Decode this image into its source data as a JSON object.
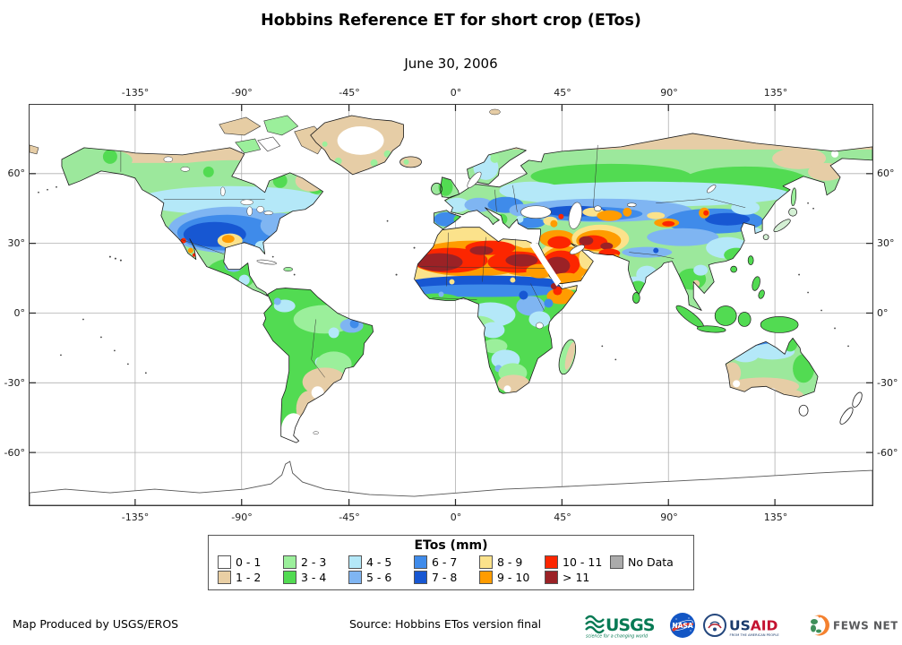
{
  "title": "Hobbins Reference ET for short crop (ETos)",
  "subtitle": "June 30, 2006",
  "axes": {
    "lon_ticks": [
      "-135°",
      "-90°",
      "-45°",
      "0°",
      "45°",
      "90°",
      "135°"
    ],
    "lat_ticks": [
      "60°",
      "30°",
      "0°",
      "-30°",
      "-60°"
    ]
  },
  "legend": {
    "title": "ETos (mm)",
    "items": [
      {
        "label": "0 - 1",
        "color": "#ffffff"
      },
      {
        "label": "1 - 2",
        "color": "#e9cfa4"
      },
      {
        "label": "2 - 3",
        "color": "#9bef9b"
      },
      {
        "label": "3 - 4",
        "color": "#52db52"
      },
      {
        "label": "4 - 5",
        "color": "#b4e8f8"
      },
      {
        "label": "5 - 6",
        "color": "#7fb5f2"
      },
      {
        "label": "6 - 7",
        "color": "#3f8bea"
      },
      {
        "label": "7 - 8",
        "color": "#1757d2"
      },
      {
        "label": "8 - 9",
        "color": "#fbe28b"
      },
      {
        "label": "9 - 10",
        "color": "#ff9c00"
      },
      {
        "label": "10 - 11",
        "color": "#fc2600"
      },
      {
        "label": "> 11",
        "color": "#9b2226"
      },
      {
        "label": "No Data",
        "color": "#ababab"
      }
    ]
  },
  "footer": {
    "credit": "Map Produced by USGS/EROS",
    "source": "Source: Hobbins ETos version final"
  },
  "logos": {
    "usgs": {
      "name": "USGS",
      "tagline": "science for a changing world"
    },
    "nasa": {
      "name": "NASA"
    },
    "usaid": {
      "name": "USAID",
      "tagline": "FROM THE AMERICAN PEOPLE"
    },
    "fewsnet": {
      "name": "FEWS NET"
    }
  }
}
